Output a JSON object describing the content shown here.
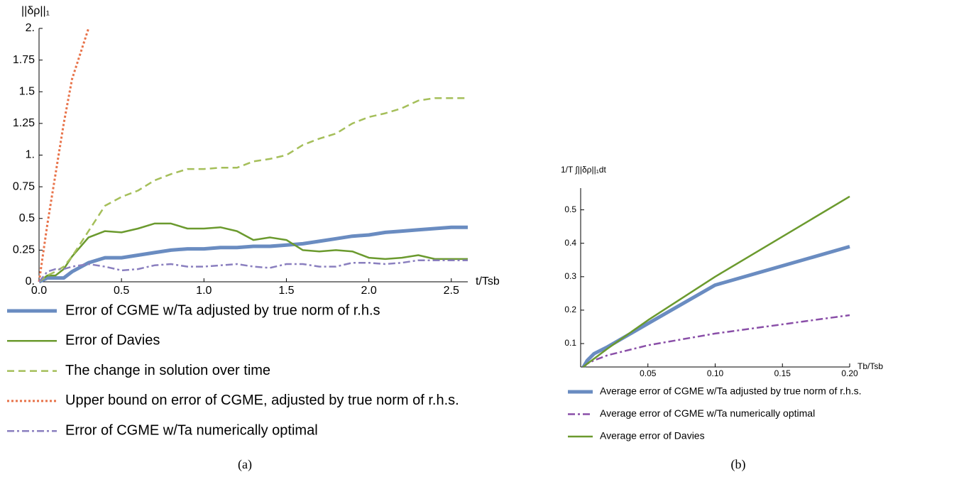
{
  "chart_data": [
    {
      "type": "line",
      "caption": "(a)",
      "ylabel": "||δρ||₁",
      "xlabel": "t/Tsb",
      "xlim": [
        0,
        2.6
      ],
      "ylim": [
        0,
        2
      ],
      "xticks": [
        {
          "value": 0,
          "label": "0.0"
        },
        0.5,
        {
          "value": 1,
          "label": "1.0"
        },
        1.5,
        {
          "value": 2,
          "label": "2.0"
        },
        2.5
      ],
      "yticks": [
        {
          "value": 0,
          "label": "0."
        },
        0.25,
        0.5,
        0.75,
        {
          "value": 1,
          "label": "1."
        },
        1.25,
        1.5,
        1.75,
        {
          "value": 2,
          "label": "2."
        }
      ],
      "x": [
        0,
        0.05,
        0.1,
        0.15,
        0.2,
        0.3,
        0.4,
        0.5,
        0.6,
        0.7,
        0.8,
        0.9,
        1.0,
        1.1,
        1.2,
        1.3,
        1.4,
        1.5,
        1.6,
        1.7,
        1.8,
        1.9,
        2.0,
        2.1,
        2.2,
        2.3,
        2.4,
        2.5,
        2.6
      ],
      "series": [
        {
          "name": "Error of CGME w/Ta adjusted by true norm of r.h.s",
          "color": "#6a8cc1",
          "style": "thick",
          "values": [
            0,
            0.03,
            0.03,
            0.03,
            0.08,
            0.15,
            0.19,
            0.19,
            0.21,
            0.23,
            0.25,
            0.26,
            0.26,
            0.27,
            0.27,
            0.28,
            0.28,
            0.29,
            0.3,
            0.32,
            0.34,
            0.36,
            0.37,
            0.39,
            0.4,
            0.41,
            0.42,
            0.43,
            0.43
          ]
        },
        {
          "name": "Error of Davies",
          "color": "#6b9a2e",
          "style": "solid",
          "values": [
            0,
            0.05,
            0.05,
            0.1,
            0.2,
            0.35,
            0.4,
            0.39,
            0.42,
            0.46,
            0.46,
            0.42,
            0.42,
            0.43,
            0.4,
            0.33,
            0.35,
            0.33,
            0.25,
            0.24,
            0.25,
            0.24,
            0.19,
            0.18,
            0.19,
            0.21,
            0.18,
            0.18,
            0.18
          ]
        },
        {
          "name": "The change in solution over time",
          "color": "#a5bf5a",
          "style": "dashed",
          "values": [
            0,
            0.05,
            0.08,
            0.12,
            0.2,
            0.4,
            0.6,
            0.67,
            0.72,
            0.8,
            0.85,
            0.89,
            0.89,
            0.9,
            0.9,
            0.95,
            0.97,
            1.0,
            1.08,
            1.13,
            1.17,
            1.25,
            1.3,
            1.33,
            1.37,
            1.43,
            1.45,
            1.45,
            1.45
          ]
        },
        {
          "name": "Upper bound on error of CGME, adjusted by true norm of r.h.s.",
          "color": "#e8734a",
          "style": "dotted",
          "values": [
            0,
            0.45,
            0.85,
            1.25,
            1.6,
            2.0,
            null,
            null,
            null,
            null,
            null,
            null,
            null,
            null,
            null,
            null,
            null,
            null,
            null,
            null,
            null,
            null,
            null,
            null,
            null,
            null,
            null,
            null,
            null
          ]
        },
        {
          "name": "Error of CGME w/Ta numerically optimal",
          "color": "#8a7fbf",
          "style": "dashdot",
          "values": [
            0,
            0.08,
            0.1,
            0.1,
            0.12,
            0.14,
            0.12,
            0.09,
            0.1,
            0.13,
            0.14,
            0.12,
            0.12,
            0.13,
            0.14,
            0.12,
            0.11,
            0.14,
            0.14,
            0.12,
            0.12,
            0.15,
            0.15,
            0.14,
            0.15,
            0.17,
            0.17,
            0.17,
            0.17
          ]
        }
      ]
    },
    {
      "type": "line",
      "caption": "(b)",
      "ylabel": "1/T ∫||δρ||₁dt",
      "xlabel": "Tb/Tsb",
      "xlim": [
        0,
        0.2
      ],
      "ylim": [
        0.03,
        0.565
      ],
      "xticks": [
        0.05,
        {
          "value": 0.1,
          "label": "0.10"
        },
        0.15,
        {
          "value": 0.2,
          "label": "0.20"
        }
      ],
      "yticks": [
        0.1,
        0.2,
        0.3,
        0.4,
        0.5
      ],
      "x": [
        0.002,
        0.005,
        0.01,
        0.02,
        0.05,
        0.1,
        0.2
      ],
      "series": [
        {
          "name": "Average error of CGME w/Ta adjusted by true norm of r.h.s.",
          "color": "#6a8cc1",
          "style": "thick",
          "values": [
            0.03,
            0.05,
            0.07,
            0.09,
            0.16,
            0.275,
            0.39
          ]
        },
        {
          "name": "Average error of CGME w/Ta numerically optimal",
          "color": "#8a4fa8",
          "style": "dashdot",
          "values": [
            0.03,
            0.04,
            0.05,
            0.065,
            0.095,
            0.13,
            0.185
          ]
        },
        {
          "name": "Average error of Davies",
          "color": "#6b9a2e",
          "style": "solid",
          "values": [
            0.03,
            0.04,
            0.055,
            0.085,
            0.17,
            0.3,
            0.54
          ]
        }
      ]
    }
  ]
}
